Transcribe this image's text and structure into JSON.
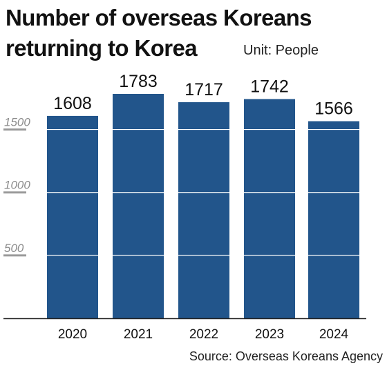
{
  "title_line1": "Number of overseas Koreans",
  "title_line2": "returning to Korea",
  "unit_label": "Unit: People",
  "source": "Source: Overseas Koreans Agency",
  "colors": {
    "bar": "#22558b",
    "grid": "#ffffff",
    "tick_label": "#8c8c8c",
    "tick_mark": "#9a9a9a",
    "axis": "#222222",
    "text": "#111111"
  },
  "chart_data": {
    "type": "bar",
    "categories": [
      "2020",
      "2021",
      "2022",
      "2023",
      "2024"
    ],
    "values": [
      1608,
      1783,
      1717,
      1742,
      1566
    ],
    "yticks": [
      500,
      1000,
      1500
    ],
    "ylim": [
      0,
      1783
    ],
    "grid": true,
    "legend": false,
    "data_labels": true
  }
}
